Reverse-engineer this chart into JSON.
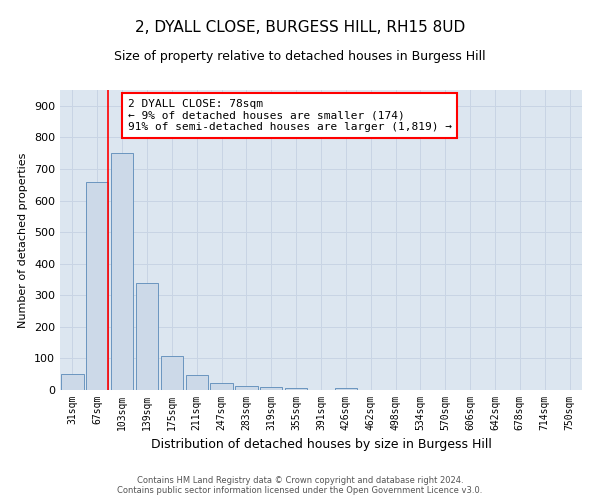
{
  "title": "2, DYALL CLOSE, BURGESS HILL, RH15 8UD",
  "subtitle": "Size of property relative to detached houses in Burgess Hill",
  "xlabel": "Distribution of detached houses by size in Burgess Hill",
  "ylabel": "Number of detached properties",
  "footer_line1": "Contains HM Land Registry data © Crown copyright and database right 2024.",
  "footer_line2": "Contains public sector information licensed under the Open Government Licence v3.0.",
  "bin_labels": [
    "31sqm",
    "67sqm",
    "103sqm",
    "139sqm",
    "175sqm",
    "211sqm",
    "247sqm",
    "283sqm",
    "319sqm",
    "355sqm",
    "391sqm",
    "426sqm",
    "462sqm",
    "498sqm",
    "534sqm",
    "570sqm",
    "606sqm",
    "642sqm",
    "678sqm",
    "714sqm",
    "750sqm"
  ],
  "bar_heights": [
    50,
    660,
    750,
    340,
    107,
    48,
    22,
    13,
    8,
    5,
    0,
    6,
    0,
    0,
    0,
    0,
    0,
    0,
    0,
    0,
    0
  ],
  "bar_color": "#ccd9e8",
  "bar_edge_color": "#5a8ab8",
  "red_line_x": 1.45,
  "annotation_text": "2 DYALL CLOSE: 78sqm\n← 9% of detached houses are smaller (174)\n91% of semi-detached houses are larger (1,819) →",
  "annotation_box_color": "white",
  "annotation_box_edge": "red",
  "red_line_color": "red",
  "ylim": [
    0,
    950
  ],
  "yticks": [
    0,
    100,
    200,
    300,
    400,
    500,
    600,
    700,
    800,
    900
  ],
  "grid_color": "#c8d4e4",
  "background_color": "#dce6f0",
  "title_fontsize": 11,
  "subtitle_fontsize": 9,
  "annotation_fontsize": 8,
  "ylabel_fontsize": 8,
  "xlabel_fontsize": 9,
  "footer_fontsize": 6,
  "tick_fontsize": 7
}
